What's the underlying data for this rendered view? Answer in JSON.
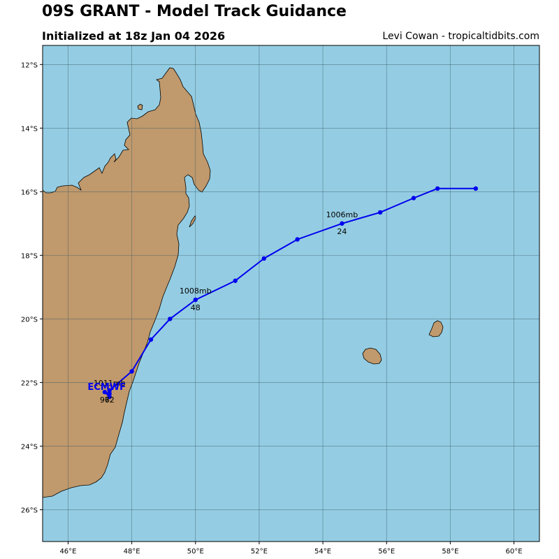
{
  "header": {
    "title": "09S GRANT - Model Track Guidance",
    "subtitle": "Initialized at 18z Jan 04 2026",
    "credit": "Levi Cowan - tropicaltidbits.com"
  },
  "colors": {
    "ocean": "#94cde3",
    "land": "#c0996c",
    "track": "#0000ee",
    "grid": "#3a5a66"
  },
  "axes": {
    "lon_ticks": [
      "46°E",
      "48°E",
      "50°E",
      "52°E",
      "54°E",
      "56°E",
      "58°E",
      "60°E"
    ],
    "lat_ticks": [
      "12°S",
      "14°S",
      "16°S",
      "18°S",
      "20°S",
      "22°S",
      "24°S",
      "26°S"
    ]
  },
  "model": {
    "name": "ECMWF",
    "track": [
      {
        "lon": 58.8,
        "lat": -15.9
      },
      {
        "lon": 57.6,
        "lat": -15.9
      },
      {
        "lon": 56.85,
        "lat": -16.2
      },
      {
        "lon": 55.8,
        "lat": -16.65
      },
      {
        "lon": 54.6,
        "lat": -17.0
      },
      {
        "lon": 53.2,
        "lat": -17.5
      },
      {
        "lon": 52.15,
        "lat": -18.1
      },
      {
        "lon": 51.25,
        "lat": -18.8
      },
      {
        "lon": 50.0,
        "lat": -19.4
      },
      {
        "lon": 49.2,
        "lat": -20.0
      },
      {
        "lon": 48.6,
        "lat": -20.65
      },
      {
        "lon": 48.0,
        "lat": -21.65
      },
      {
        "lon": 47.3,
        "lat": -22.25
      },
      {
        "lon": 47.3,
        "lat": -22.35
      },
      {
        "lon": 47.15,
        "lat": -22.3
      },
      {
        "lon": 47.3,
        "lat": -22.45
      }
    ]
  },
  "annotations": [
    {
      "pressure": "1006mb",
      "hour": "24",
      "lon": 54.6,
      "lat": -17.0
    },
    {
      "pressure": "1008mb",
      "hour": "48",
      "lon": 50.0,
      "lat": -19.4
    },
    {
      "pressure": "1011mb",
      "hour": "72",
      "lon": 47.3,
      "lat": -22.3
    },
    {
      "pressure": "",
      "hour": "96",
      "lon": 47.15,
      "lat": -22.3
    }
  ]
}
